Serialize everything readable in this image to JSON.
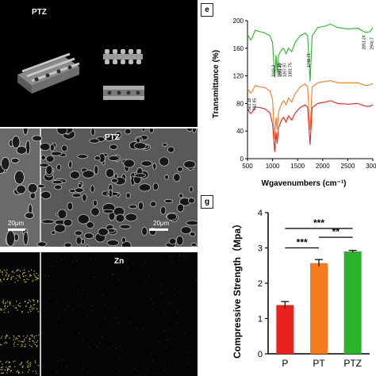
{
  "panel_labels": {
    "e": "e",
    "g": "g"
  },
  "top_left": {
    "label": "PTZ"
  },
  "sem": {
    "label": "PTZ",
    "scale_left": "20μm",
    "scale_right": "20μm"
  },
  "edx": {
    "label": "Zn"
  },
  "colors": {
    "P": "#e8231f",
    "PT": "#f47c1f",
    "PTZ": "#2bb32b",
    "dark": "#0a0a0a"
  },
  "chart_data": [
    {
      "type": "line",
      "xlabel": "Wgavenumbers (cm⁻¹)",
      "ylabel": "Transmittance (%)",
      "xlim": [
        500,
        3000
      ],
      "ylim": [
        0,
        200
      ],
      "xticks": [
        "500",
        "1000",
        "1500",
        "2000",
        "2500",
        "3000"
      ],
      "yticks": [
        "0",
        "40",
        "80",
        "120",
        "160",
        "200"
      ],
      "annotations": [
        "561.18",
        "602.65",
        "1043.3",
        "1091.55",
        "1181.42",
        "1267.97",
        "1381.75",
        "1748.71",
        "2851.24",
        "2946.7"
      ],
      "series": [
        {
          "color": "#2bb32b",
          "x": [
            500,
            560,
            600,
            650,
            750,
            850,
            950,
            1000,
            1043,
            1070,
            1091,
            1120,
            1181,
            1220,
            1268,
            1320,
            1382,
            1450,
            1550,
            1650,
            1700,
            1749,
            1790,
            1900,
            2050,
            2150,
            2300,
            2500,
            2700,
            2851,
            2946,
            3000
          ],
          "y": [
            180,
            172,
            176,
            186,
            184,
            182,
            178,
            168,
            118,
            150,
            125,
            150,
            158,
            160,
            152,
            160,
            155,
            168,
            178,
            182,
            178,
            112,
            178,
            190,
            192,
            195,
            190,
            188,
            189,
            183,
            184,
            190
          ]
        },
        {
          "color": "#f47c1f",
          "x": [
            500,
            560,
            600,
            650,
            750,
            850,
            950,
            1000,
            1043,
            1070,
            1091,
            1120,
            1181,
            1220,
            1268,
            1320,
            1382,
            1450,
            1550,
            1650,
            1700,
            1749,
            1790,
            1900,
            2050,
            2150,
            2300,
            2500,
            2700,
            2851,
            2946,
            3000
          ],
          "y": [
            102,
            95,
            98,
            106,
            104,
            103,
            98,
            85,
            28,
            60,
            42,
            68,
            80,
            84,
            78,
            88,
            82,
            94,
            104,
            108,
            104,
            42,
            104,
            110,
            112,
            113,
            110,
            110,
            110,
            106,
            107,
            109
          ]
        },
        {
          "color": "#e8231f",
          "x": [
            500,
            560,
            600,
            650,
            750,
            850,
            950,
            1000,
            1043,
            1070,
            1091,
            1120,
            1181,
            1220,
            1268,
            1320,
            1382,
            1450,
            1550,
            1650,
            1700,
            1749,
            1790,
            1900,
            2050,
            2150,
            2300,
            2500,
            2700,
            2851,
            2946,
            3000
          ],
          "y": [
            72,
            65,
            68,
            75,
            74,
            72,
            66,
            50,
            10,
            38,
            22,
            45,
            56,
            60,
            53,
            62,
            56,
            66,
            74,
            78,
            74,
            20,
            74,
            80,
            82,
            84,
            80,
            79,
            80,
            76,
            76,
            78
          ]
        }
      ]
    },
    {
      "type": "bar",
      "categories": [
        "P",
        "PT",
        "PTZ"
      ],
      "values": [
        1.38,
        2.57,
        2.9
      ],
      "errors": [
        0.1,
        0.1,
        0.03
      ],
      "ylabel": "Compressive Strength（Mpa）",
      "ylim": [
        0,
        4
      ],
      "yticks": [
        "0",
        "1",
        "2",
        "3",
        "4"
      ],
      "significance": [
        "***",
        "***",
        "**"
      ]
    }
  ]
}
